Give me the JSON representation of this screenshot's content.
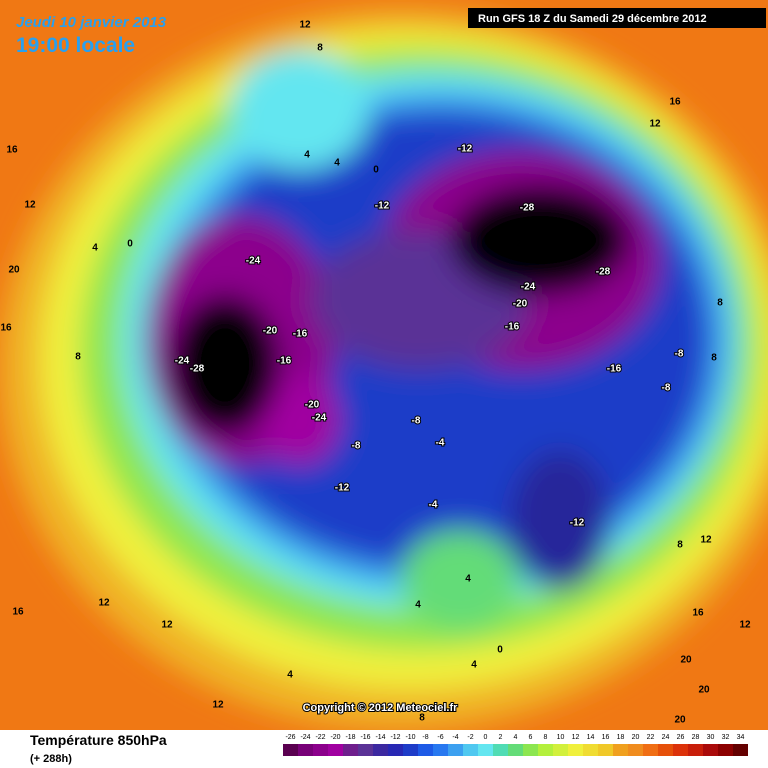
{
  "header": {
    "date": "Jeudi 10 janvier 2013",
    "time": "19:00 locale",
    "run": "Run GFS 18 Z du Samedi 29 décembre 2012"
  },
  "copyright": "Copyright © 2012 Meteociel.fr",
  "footer": {
    "title": "Température 850hPa",
    "lead": "(+ 288h)"
  },
  "contour_labels": [
    12,
    8,
    16,
    12,
    16,
    4,
    4,
    0,
    -12,
    12,
    -12,
    -28,
    4,
    0,
    -24,
    20,
    -28,
    -24,
    -20,
    8,
    16,
    -20,
    -16,
    -16,
    -24,
    -28,
    -16,
    8,
    -8,
    8,
    -16,
    -8,
    -20,
    -24,
    -8,
    -8,
    -4,
    -12,
    -4,
    -12,
    12,
    8,
    4,
    4,
    16,
    12,
    12,
    16,
    12,
    0,
    20,
    4,
    4,
    12,
    20,
    20,
    8
  ],
  "legend": {
    "values": [
      -26,
      -24,
      -22,
      -20,
      -18,
      -16,
      -14,
      -12,
      -10,
      -8,
      -6,
      -4,
      -2,
      0,
      2,
      4,
      6,
      8,
      10,
      12,
      14,
      16,
      18,
      20,
      22,
      24,
      26,
      28,
      30,
      32,
      34
    ],
    "colors": [
      "#5a0050",
      "#780078",
      "#8c008c",
      "#a000a0",
      "#6e1e8c",
      "#5a3296",
      "#3c28a0",
      "#2828b4",
      "#1e3cc8",
      "#1e5ae6",
      "#2878f0",
      "#3ca0f0",
      "#50c8f0",
      "#64e6f0",
      "#50dcb4",
      "#64dc78",
      "#8ce650",
      "#b4f03c",
      "#d2f03c",
      "#f0f03c",
      "#f0dc32",
      "#f0c828",
      "#f0a01e",
      "#f08c1e",
      "#f06e14",
      "#e6500a",
      "#dc320a",
      "#c81e0a",
      "#aa0a0a",
      "#8c0000",
      "#640000"
    ]
  }
}
